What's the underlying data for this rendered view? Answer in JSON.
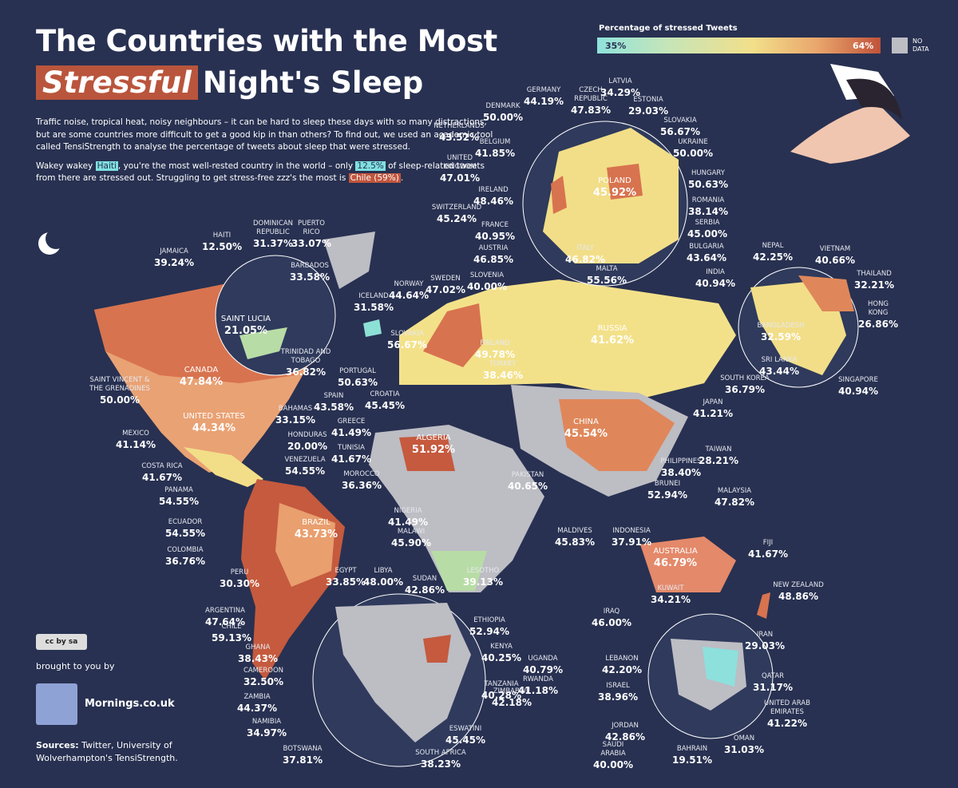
{
  "header": {
    "title_line1": "The Countries with the Most",
    "title_highlight": "Stressful",
    "title_rest": "Night's Sleep"
  },
  "intro": {
    "paragraph1": "Traffic noise, tropical heat, noisy neighbours – it can be hard to sleep these days with so many distractions, but are some countries more difficult to get a good kip in than others? To find out, we used an academic tool called TensiStrength to analyse the percentage of tweets about sleep that were stressed.",
    "paragraph2": [
      "Wakey wakey ",
      "Haiti",
      ", you're the most well-rested country in the world – only ",
      "12.5%",
      " of sleep-related tweets from there are stressed out. Struggling to get stress-free zzz's the most is ",
      "Chile (59%)",
      "."
    ]
  },
  "legend": {
    "title": "Percentage of stressed Tweets",
    "min_label": "35%",
    "max_label": "64%",
    "no_data": [
      "NO",
      "DATA"
    ]
  },
  "countries": [
    {
      "name": [
        "GERMANY"
      ],
      "value": "44.19%"
    },
    {
      "name": [
        "CZECH",
        "REPUBLIC"
      ],
      "value": "47.83%"
    },
    {
      "name": [
        "LATVIA"
      ],
      "value": "34.29%"
    },
    {
      "name": [
        "ESTONIA"
      ],
      "value": "29.03%"
    },
    {
      "name": [
        "DENMARK"
      ],
      "value": "50.00%"
    },
    {
      "name": [
        "NETHERLANDS"
      ],
      "value": "43.52%"
    },
    {
      "name": [
        "SLOVAKIA"
      ],
      "value": "56.67%"
    },
    {
      "name": [
        "UKRAINE"
      ],
      "value": "50.00%"
    },
    {
      "name": [
        "BELGIUM"
      ],
      "value": "41.85%"
    },
    {
      "name": [
        "UNITED",
        "KINGDOM"
      ],
      "value": "47.01%"
    },
    {
      "name": [
        "IRELAND"
      ],
      "value": "48.46%"
    },
    {
      "name": [
        "POLAND"
      ],
      "value": "45.92%"
    },
    {
      "name": [
        "HUNGARY"
      ],
      "value": "50.63%"
    },
    {
      "name": [
        "ROMANIA"
      ],
      "value": "38.14%"
    },
    {
      "name": [
        "SWITZERLAND"
      ],
      "value": "45.24%"
    },
    {
      "name": [
        "FRANCE"
      ],
      "value": "40.95%"
    },
    {
      "name": [
        "SERBIA"
      ],
      "value": "45.00%"
    },
    {
      "name": [
        "AUSTRIA"
      ],
      "value": "46.85%"
    },
    {
      "name": [
        "ITALY"
      ],
      "value": "46.82%"
    },
    {
      "name": [
        "BULGARIA"
      ],
      "value": "43.64%"
    },
    {
      "name": [
        "SLOVENIA"
      ],
      "value": "40.00%"
    },
    {
      "name": [
        "MALTA"
      ],
      "value": "55.56%"
    },
    {
      "name": [
        "NEPAL"
      ],
      "value": "42.25%"
    },
    {
      "name": [
        "VIETNAM"
      ],
      "value": "40.66%"
    },
    {
      "name": [
        "INDIA"
      ],
      "value": "40.94%"
    },
    {
      "name": [
        "THAILAND"
      ],
      "value": "32.21%"
    },
    {
      "name": [
        "HONG",
        "KONG"
      ],
      "value": "26.86%"
    },
    {
      "name": [
        "BANGLADESH"
      ],
      "value": "32.59%"
    },
    {
      "name": [
        "SRI LANKA"
      ],
      "value": "43.44%"
    },
    {
      "name": [
        "SINGAPORE"
      ],
      "value": "40.94%"
    },
    {
      "name": [
        "HAITI"
      ],
      "value": "12.50%"
    },
    {
      "name": [
        "DOMINICAN",
        "REPUBLIC"
      ],
      "value": "31.37%"
    },
    {
      "name": [
        "PUERTO",
        "RICO"
      ],
      "value": "33.07%"
    },
    {
      "name": [
        "JAMAICA"
      ],
      "value": "39.24%"
    },
    {
      "name": [
        "BARBADOS"
      ],
      "value": "33.58%"
    },
    {
      "name": [
        "ICELAND"
      ],
      "value": "31.58%"
    },
    {
      "name": [
        "NORWAY"
      ],
      "value": "44.64%"
    },
    {
      "name": [
        "SWEDEN"
      ],
      "value": "47.02%"
    },
    {
      "name": [
        "SAINT LUCIA"
      ],
      "value": "21.05%"
    },
    {
      "name": [
        "RUSSIA"
      ],
      "value": "41.62%"
    },
    {
      "name": [
        "SLOVAKIA"
      ],
      "value": "56.67%"
    },
    {
      "name": [
        "FINLAND"
      ],
      "value": "49.78%"
    },
    {
      "name": [
        "TURKEY"
      ],
      "value": "38.46%"
    },
    {
      "name": [
        "TRINIDAD AND",
        "TOBAGO"
      ],
      "value": "36.82%"
    },
    {
      "name": [
        "CANADA"
      ],
      "value": "47.84%"
    },
    {
      "name": [
        "SAINT VINCENT &",
        "THE GRENADINES"
      ],
      "value": "50.00%"
    },
    {
      "name": [
        "PORTUGAL"
      ],
      "value": "50.63%"
    },
    {
      "name": [
        "SPAIN"
      ],
      "value": "43.58%"
    },
    {
      "name": [
        "CROATIA"
      ],
      "value": "45.45%"
    },
    {
      "name": [
        "SOUTH KOREA"
      ],
      "value": "36.79%"
    },
    {
      "name": [
        "UNITED STATES"
      ],
      "value": "44.34%"
    },
    {
      "name": [
        "BAHAMAS"
      ],
      "value": "33.15%"
    },
    {
      "name": [
        "JAPAN"
      ],
      "value": "41.21%"
    },
    {
      "name": [
        "GREECE"
      ],
      "value": "41.49%"
    },
    {
      "name": [
        "CHINA"
      ],
      "value": "45.54%"
    },
    {
      "name": [
        "MEXICO"
      ],
      "value": "41.14%"
    },
    {
      "name": [
        "HONDURAS"
      ],
      "value": "20.00%"
    },
    {
      "name": [
        "TUNISIA"
      ],
      "value": "41.67%"
    },
    {
      "name": [
        "ALGERIA"
      ],
      "value": "51.92%"
    },
    {
      "name": [
        "TAIWAN"
      ],
      "value": "28.21%"
    },
    {
      "name": [
        "VENEZUELA"
      ],
      "value": "54.55%"
    },
    {
      "name": [
        "COSTA RICA"
      ],
      "value": "41.67%"
    },
    {
      "name": [
        "MOROCCO"
      ],
      "value": "36.36%"
    },
    {
      "name": [
        "PHILIPPINES"
      ],
      "value": "38.40%"
    },
    {
      "name": [
        "PAKISTAN"
      ],
      "value": "40.65%"
    },
    {
      "name": [
        "BRUNEI"
      ],
      "value": "52.94%"
    },
    {
      "name": [
        "MALAYSIA"
      ],
      "value": "47.82%"
    },
    {
      "name": [
        "PANAMA"
      ],
      "value": "54.55%"
    },
    {
      "name": [
        "NIGERIA"
      ],
      "value": "41.49%"
    },
    {
      "name": [
        "ECUADOR"
      ],
      "value": "54.55%"
    },
    {
      "name": [
        "BRAZIL"
      ],
      "value": "43.73%"
    },
    {
      "name": [
        "MALDIVES"
      ],
      "value": "45.83%"
    },
    {
      "name": [
        "INDONESIA"
      ],
      "value": "37.91%"
    },
    {
      "name": [
        "FIJI"
      ],
      "value": "41.67%"
    },
    {
      "name": [
        "MALAWI"
      ],
      "value": "45.90%"
    },
    {
      "name": [
        "COLOMBIA"
      ],
      "value": "36.76%"
    },
    {
      "name": [
        "AUSTRALIA"
      ],
      "value": "46.79%"
    },
    {
      "name": [
        "PERU"
      ],
      "value": "30.30%"
    },
    {
      "name": [
        "EGYPT"
      ],
      "value": "33.85%"
    },
    {
      "name": [
        "LIBYA"
      ],
      "value": "48.00%"
    },
    {
      "name": [
        "SUDAN"
      ],
      "value": "42.86%"
    },
    {
      "name": [
        "LESOTHO"
      ],
      "value": "39.13%"
    },
    {
      "name": [
        "KUWAIT"
      ],
      "value": "34.21%"
    },
    {
      "name": [
        "NEW ZEALAND"
      ],
      "value": "48.86%"
    },
    {
      "name": [
        "ARGENTINA"
      ],
      "value": "47.64%"
    },
    {
      "name": [
        "IRAQ"
      ],
      "value": "46.00%"
    },
    {
      "name": [
        "CHILE"
      ],
      "value": "59.13%"
    },
    {
      "name": [
        "ETHIOPIA"
      ],
      "value": "52.94%"
    },
    {
      "name": [
        "IRAN"
      ],
      "value": "29.03%"
    },
    {
      "name": [
        "KENYA"
      ],
      "value": "40.25%"
    },
    {
      "name": [
        "GHANA"
      ],
      "value": "38.43%"
    },
    {
      "name": [
        "UGANDA"
      ],
      "value": "40.79%"
    },
    {
      "name": [
        "LEBANON"
      ],
      "value": "42.20%"
    },
    {
      "name": [
        "CAMEROON"
      ],
      "value": "32.50%"
    },
    {
      "name": [
        "RWANDA"
      ],
      "value": "41.18%"
    },
    {
      "name": [
        "TANZANIA"
      ],
      "value": "40.28%"
    },
    {
      "name": [
        "QATAR"
      ],
      "value": "31.17%"
    },
    {
      "name": [
        "ISRAEL"
      ],
      "value": "38.96%"
    },
    {
      "name": [
        "ZAMBIA"
      ],
      "value": "44.37%"
    },
    {
      "name": [
        "ZIMBABWE"
      ],
      "value": "42.18%"
    },
    {
      "name": [
        "UNITED ARAB",
        "EMIRATES"
      ],
      "value": "41.22%"
    },
    {
      "name": [
        "NAMIBIA"
      ],
      "value": "34.97%"
    },
    {
      "name": [
        "ESWATINI"
      ],
      "value": "45.45%"
    },
    {
      "name": [
        "JORDAN"
      ],
      "value": "42.86%"
    },
    {
      "name": [
        "SAUDI",
        "ARABIA"
      ],
      "value": "40.00%"
    },
    {
      "name": [
        "BOTSWANA"
      ],
      "value": "37.81%"
    },
    {
      "name": [
        "BAHRAIN"
      ],
      "value": "19.51%"
    },
    {
      "name": [
        "OMAN"
      ],
      "value": "31.03%"
    },
    {
      "name": [
        "SOUTH AFRICA"
      ],
      "value": "38.23%"
    }
  ],
  "footer": {
    "license": "cc by sa",
    "brought_by": "brought to you by",
    "brand": "Mornings.co.uk",
    "sources_label": "Sources:",
    "sources_text": "Twitter, University of Wolverhampton's TensiStrength."
  }
}
